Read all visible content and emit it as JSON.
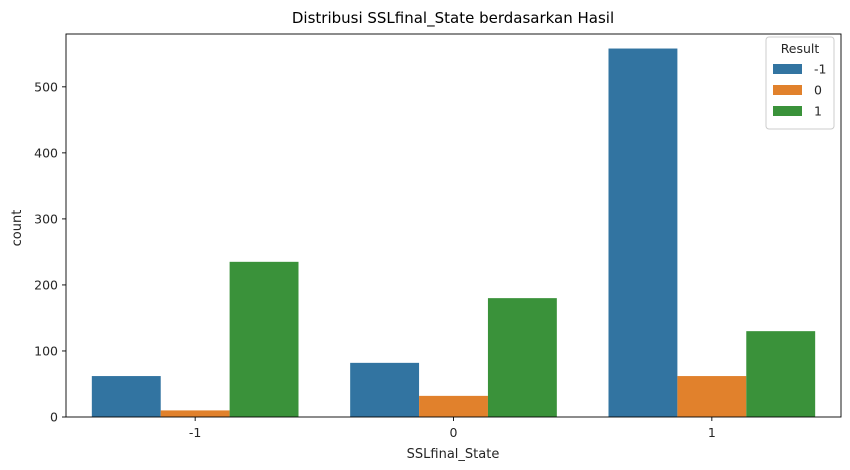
{
  "chart_data": {
    "type": "bar",
    "title": "Distribusi SSLfinal_State berdasarkan Hasil",
    "xlabel": "SSLfinal_State",
    "ylabel": "count",
    "categories": [
      "-1",
      "0",
      "1"
    ],
    "series": [
      {
        "name": "-1",
        "values": [
          62,
          82,
          558
        ],
        "color": "#3274a1"
      },
      {
        "name": "0",
        "values": [
          10,
          32,
          62
        ],
        "color": "#e1812c"
      },
      {
        "name": "1",
        "values": [
          235,
          180,
          130
        ],
        "color": "#3a923a"
      }
    ],
    "ylim": [
      0,
      580
    ],
    "yticks": [
      0,
      100,
      200,
      300,
      400,
      500
    ],
    "legend": {
      "title": "Result",
      "position": "top-right"
    },
    "grid": false
  }
}
